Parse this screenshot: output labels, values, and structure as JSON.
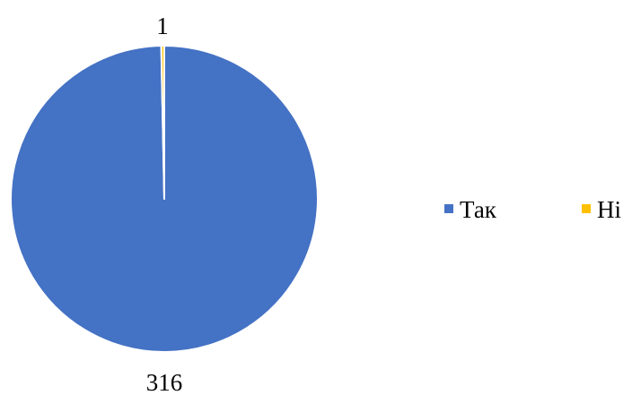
{
  "chart_data": {
    "type": "pie",
    "categories": [
      "Так",
      "Ні"
    ],
    "values": [
      316,
      1
    ],
    "colors": [
      "#4472C4",
      "#FFC000"
    ],
    "data_labels": [
      "316",
      "1"
    ],
    "legend": {
      "position": "right",
      "entries": [
        "Так",
        "Ні"
      ]
    }
  }
}
